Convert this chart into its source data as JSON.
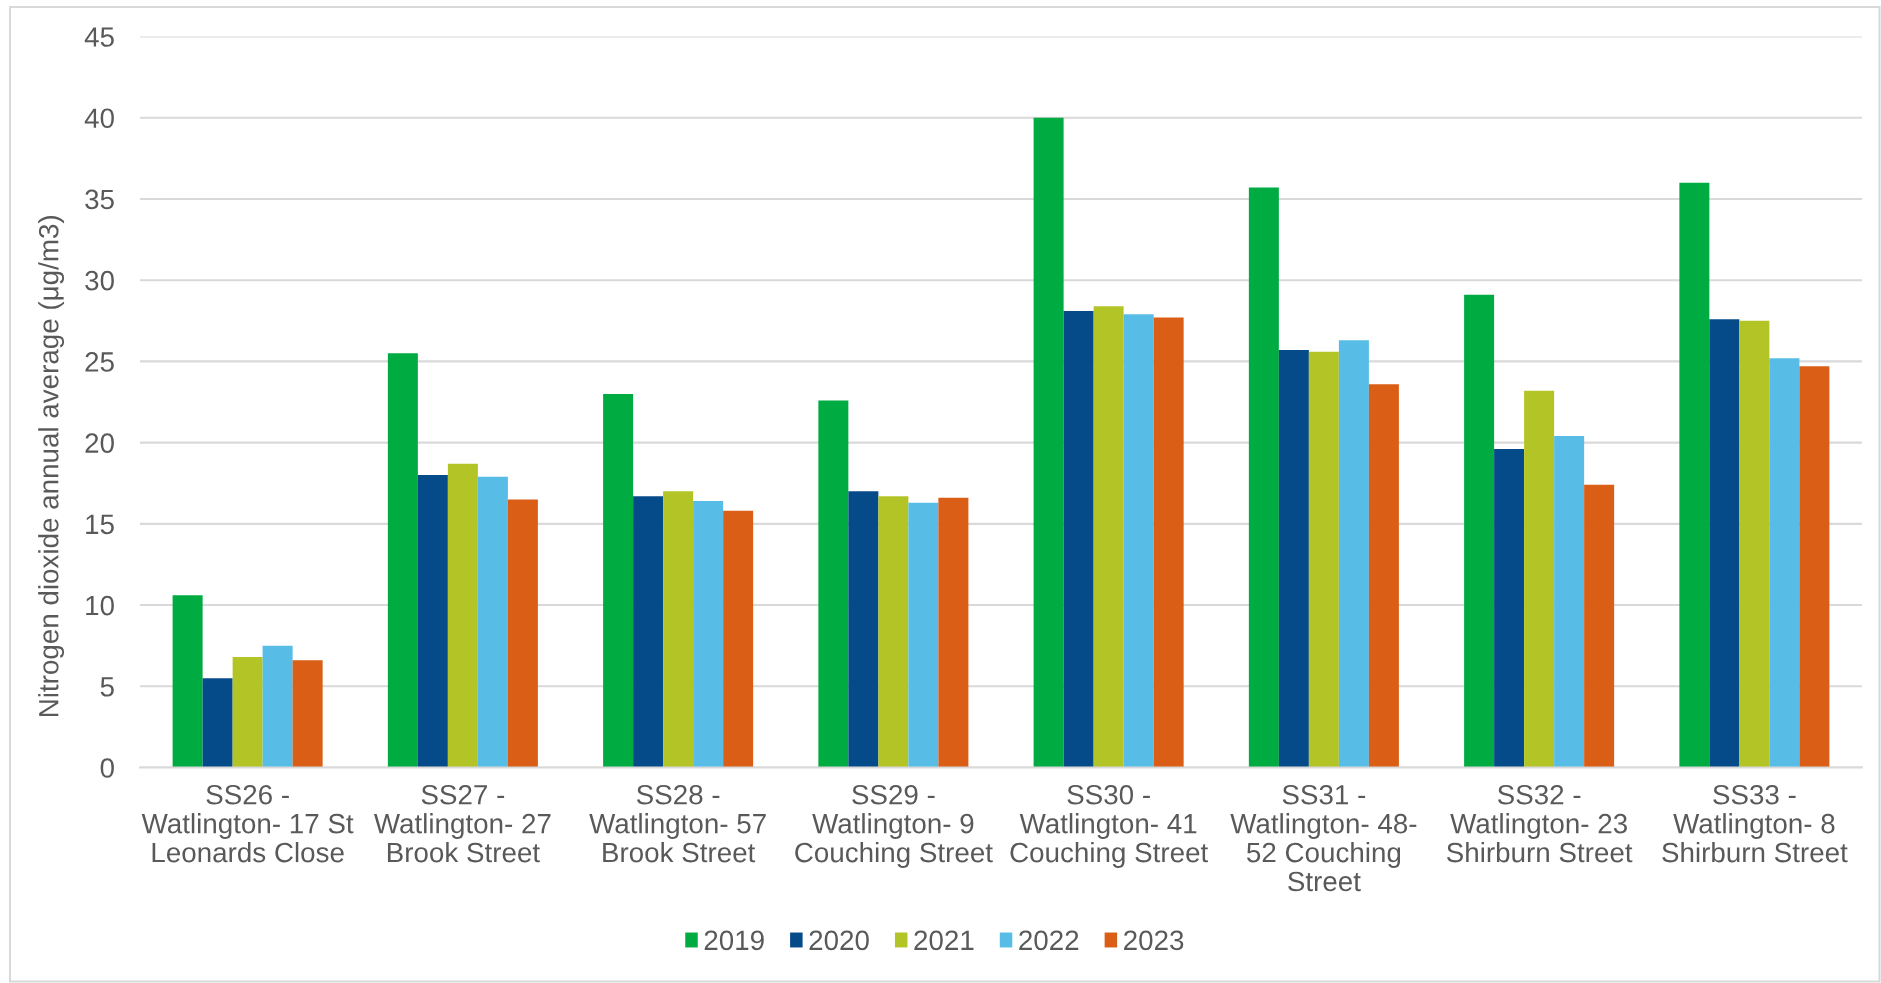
{
  "chart_data": {
    "type": "bar",
    "ylabel": "Nitrogen dioxide annual average (μg/m3)",
    "categories": [
      "SS26 - Watlington- 17 St Leonards Close",
      "SS27 - Watlington- 27 Brook Street",
      "SS28 - Watlington- 57 Brook Street",
      "SS29 - Watlington- 9 Couching Street",
      "SS30 - Watlington- 41 Couching Street",
      "SS31 - Watlington- 48-52 Couching Street",
      "SS32 - Watlington- 23 Shirburn Street",
      "SS33 - Watlington- 8 Shirburn Street"
    ],
    "series": [
      {
        "name": "2019",
        "color": "#00ac41",
        "values": [
          10.6,
          25.5,
          23.0,
          22.6,
          40.0,
          35.7,
          29.1,
          36.0
        ]
      },
      {
        "name": "2020",
        "color": "#064b89",
        "values": [
          5.5,
          18.0,
          16.7,
          17.0,
          28.1,
          25.7,
          19.6,
          27.6
        ]
      },
      {
        "name": "2021",
        "color": "#b3c526",
        "values": [
          6.8,
          18.7,
          17.0,
          16.7,
          28.4,
          25.6,
          23.2,
          27.5
        ]
      },
      {
        "name": "2022",
        "color": "#57bce6",
        "values": [
          7.5,
          17.9,
          16.4,
          16.3,
          27.9,
          26.3,
          20.4,
          25.2
        ]
      },
      {
        "name": "2023",
        "color": "#da5e16",
        "values": [
          6.6,
          16.5,
          15.8,
          16.6,
          27.7,
          23.6,
          17.4,
          24.7
        ]
      }
    ],
    "ylim": [
      0,
      45
    ],
    "yticks": [
      0,
      5,
      10,
      15,
      20,
      25,
      30,
      35,
      40,
      45
    ],
    "grid": "y",
    "legend": "bottom"
  }
}
